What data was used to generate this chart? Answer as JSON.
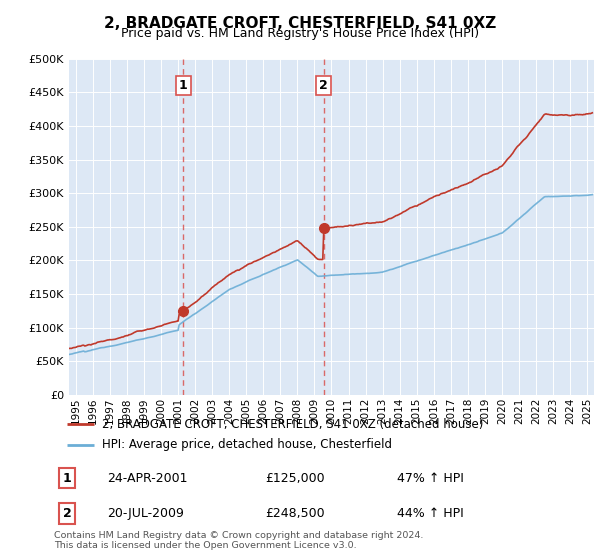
{
  "title": "2, BRADGATE CROFT, CHESTERFIELD, S41 0XZ",
  "subtitle": "Price paid vs. HM Land Registry's House Price Index (HPI)",
  "hpi_label": "HPI: Average price, detached house, Chesterfield",
  "property_label": "2, BRADGATE CROFT, CHESTERFIELD, S41 0XZ (detached house)",
  "sale1": {
    "date": "24-APR-2001",
    "price": 125000,
    "hpi_change": "47% ↑ HPI",
    "label": "1"
  },
  "sale2": {
    "date": "20-JUL-2009",
    "price": 248500,
    "hpi_change": "44% ↑ HPI",
    "label": "2"
  },
  "sale1_x": 2001.3,
  "sale2_x": 2009.55,
  "sale1_y": 125000,
  "sale2_y": 248500,
  "ylim": [
    0,
    500000
  ],
  "xlim_start": 1994.6,
  "xlim_end": 2025.4,
  "bg_color": "#dde8f5",
  "outer_bg_color": "#ffffff",
  "red_color": "#c0392b",
  "blue_color": "#6baed6",
  "vline_color": "#d9534f",
  "footnote": "Contains HM Land Registry data © Crown copyright and database right 2024.\nThis data is licensed under the Open Government Licence v3.0."
}
